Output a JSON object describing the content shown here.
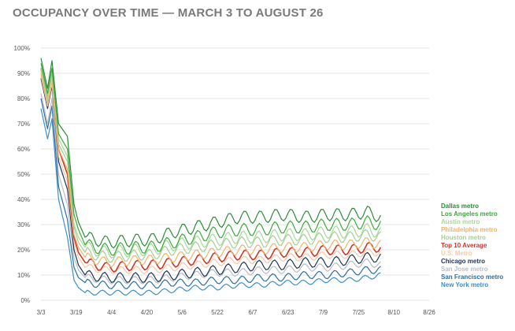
{
  "chart_data": {
    "type": "line",
    "title": "OCCUPANCY OVER TIME — MARCH 3 TO AUGUST 26",
    "xlabel": "",
    "ylabel": "",
    "x_ticks": [
      "3/3",
      "3/19",
      "4/4",
      "4/20",
      "5/6",
      "5/22",
      "6/7",
      "6/23",
      "7/9",
      "7/25",
      "8/10",
      "8/26"
    ],
    "y_ticks": [
      "0%",
      "10%",
      "20%",
      "30%",
      "40%",
      "50%",
      "60%",
      "70%",
      "80%",
      "90%",
      "100%"
    ],
    "ylim": [
      0,
      100
    ],
    "grid": true,
    "legend_placement": "right",
    "series": [
      {
        "name": "Dallas metro",
        "color": "#2e8a3a",
        "anchors": [
          [
            0,
            96
          ],
          [
            3,
            84
          ],
          [
            5,
            95
          ],
          [
            8,
            70
          ],
          [
            12,
            65
          ],
          [
            15,
            38
          ],
          [
            17,
            31
          ],
          [
            20,
            25
          ],
          [
            30,
            23
          ],
          [
            45,
            24
          ],
          [
            50,
            24
          ],
          [
            60,
            27
          ],
          [
            70,
            29
          ],
          [
            80,
            31
          ],
          [
            90,
            33
          ],
          [
            100,
            33
          ],
          [
            110,
            34
          ],
          [
            120,
            33
          ],
          [
            130,
            34
          ],
          [
            140,
            34
          ],
          [
            148,
            35
          ],
          [
            154,
            33
          ]
        ],
        "amp": 2.5,
        "period": 7,
        "phase": 0.3
      },
      {
        "name": "Los Angeles metro",
        "color": "#3aaa3a",
        "anchors": [
          [
            0,
            94
          ],
          [
            3,
            82
          ],
          [
            5,
            92
          ],
          [
            8,
            66
          ],
          [
            12,
            60
          ],
          [
            15,
            34
          ],
          [
            17,
            28
          ],
          [
            20,
            22
          ],
          [
            30,
            20
          ],
          [
            45,
            21
          ],
          [
            50,
            21
          ],
          [
            60,
            23
          ],
          [
            70,
            25
          ],
          [
            80,
            27
          ],
          [
            90,
            28
          ],
          [
            100,
            28
          ],
          [
            110,
            29
          ],
          [
            120,
            29
          ],
          [
            130,
            30
          ],
          [
            140,
            30
          ],
          [
            148,
            31
          ],
          [
            154,
            30
          ]
        ],
        "amp": 2.5,
        "period": 7,
        "phase": 0.6
      },
      {
        "name": "Austin metro",
        "color": "#a7d89a",
        "anchors": [
          [
            0,
            92
          ],
          [
            3,
            80
          ],
          [
            5,
            90
          ],
          [
            8,
            64
          ],
          [
            12,
            57
          ],
          [
            15,
            30
          ],
          [
            17,
            25
          ],
          [
            20,
            21
          ],
          [
            30,
            19
          ],
          [
            45,
            20
          ],
          [
            50,
            20
          ],
          [
            60,
            22
          ],
          [
            70,
            23
          ],
          [
            80,
            24
          ],
          [
            90,
            25
          ],
          [
            100,
            25
          ],
          [
            110,
            26
          ],
          [
            120,
            26
          ],
          [
            130,
            27
          ],
          [
            140,
            27
          ],
          [
            148,
            28
          ],
          [
            154,
            27
          ]
        ],
        "amp": 2.5,
        "period": 7,
        "phase": 0.9
      },
      {
        "name": "Philadelphia metro",
        "color": "#f2b36b",
        "anchors": [
          [
            0,
            90
          ],
          [
            3,
            78
          ],
          [
            5,
            88
          ],
          [
            8,
            60
          ],
          [
            12,
            52
          ],
          [
            15,
            26
          ],
          [
            17,
            21
          ],
          [
            20,
            17
          ],
          [
            30,
            15
          ],
          [
            45,
            16
          ],
          [
            50,
            16
          ],
          [
            60,
            17
          ],
          [
            70,
            18
          ],
          [
            80,
            19
          ],
          [
            90,
            20
          ],
          [
            100,
            20
          ],
          [
            110,
            21
          ],
          [
            120,
            21
          ],
          [
            130,
            22
          ],
          [
            140,
            22
          ],
          [
            148,
            23
          ],
          [
            154,
            22
          ]
        ],
        "amp": 2,
        "period": 7,
        "phase": 1.2
      },
      {
        "name": "Houston metro",
        "color": "#a5cf94",
        "anchors": [
          [
            0,
            91
          ],
          [
            3,
            79
          ],
          [
            5,
            89
          ],
          [
            8,
            62
          ],
          [
            12,
            55
          ],
          [
            15,
            29
          ],
          [
            17,
            23
          ],
          [
            20,
            19
          ],
          [
            30,
            17
          ],
          [
            45,
            18
          ],
          [
            50,
            18
          ],
          [
            60,
            20
          ],
          [
            70,
            21
          ],
          [
            80,
            22
          ],
          [
            90,
            23
          ],
          [
            100,
            23
          ],
          [
            110,
            24
          ],
          [
            120,
            24
          ],
          [
            130,
            25
          ],
          [
            140,
            25
          ],
          [
            148,
            26
          ],
          [
            154,
            25
          ]
        ],
        "amp": 2.2,
        "period": 7,
        "phase": 1.5
      },
      {
        "name": "Top 10 Average",
        "color": "#c9382a",
        "anchors": [
          [
            0,
            92
          ],
          [
            3,
            80
          ],
          [
            5,
            89
          ],
          [
            8,
            60
          ],
          [
            12,
            50
          ],
          [
            15,
            25
          ],
          [
            17,
            19
          ],
          [
            20,
            15
          ],
          [
            30,
            13
          ],
          [
            45,
            14
          ],
          [
            50,
            14
          ],
          [
            60,
            15
          ],
          [
            70,
            16
          ],
          [
            80,
            17
          ],
          [
            90,
            18
          ],
          [
            100,
            18
          ],
          [
            110,
            19
          ],
          [
            120,
            19
          ],
          [
            130,
            20
          ],
          [
            140,
            20
          ],
          [
            148,
            21
          ],
          [
            154,
            21
          ]
        ],
        "amp": 2,
        "period": 7,
        "phase": 0
      },
      {
        "name": "U.S. Metro",
        "color": "#f5c9a8",
        "anchors": [
          [
            0,
            89
          ],
          [
            3,
            77
          ],
          [
            5,
            86
          ],
          [
            8,
            57
          ],
          [
            12,
            47
          ],
          [
            15,
            23
          ],
          [
            17,
            17
          ],
          [
            20,
            13
          ],
          [
            30,
            12
          ],
          [
            45,
            12
          ],
          [
            50,
            12
          ],
          [
            60,
            13
          ],
          [
            70,
            14
          ],
          [
            80,
            15
          ],
          [
            90,
            16
          ],
          [
            100,
            16
          ],
          [
            110,
            17
          ],
          [
            120,
            17
          ],
          [
            130,
            18
          ],
          [
            140,
            18
          ],
          [
            148,
            19
          ],
          [
            154,
            19
          ]
        ],
        "amp": 1.5,
        "period": 7,
        "phase": 0.4
      },
      {
        "name": "Chicago metro",
        "color": "#1d3557",
        "anchors": [
          [
            0,
            88
          ],
          [
            3,
            76
          ],
          [
            5,
            85
          ],
          [
            8,
            55
          ],
          [
            12,
            44
          ],
          [
            15,
            20
          ],
          [
            17,
            14
          ],
          [
            20,
            10
          ],
          [
            30,
            9
          ],
          [
            45,
            9
          ],
          [
            50,
            9
          ],
          [
            60,
            10
          ],
          [
            70,
            11
          ],
          [
            80,
            12
          ],
          [
            90,
            13
          ],
          [
            100,
            14
          ],
          [
            110,
            14
          ],
          [
            120,
            15
          ],
          [
            130,
            15
          ],
          [
            140,
            16
          ],
          [
            148,
            17
          ],
          [
            154,
            17
          ]
        ],
        "amp": 2,
        "period": 7,
        "phase": 0.8
      },
      {
        "name": "San Jose metro",
        "color": "#b9bdc4",
        "anchors": [
          [
            0,
            82
          ],
          [
            3,
            70
          ],
          [
            5,
            80
          ],
          [
            8,
            50
          ],
          [
            12,
            38
          ],
          [
            15,
            17
          ],
          [
            17,
            12
          ],
          [
            20,
            9
          ],
          [
            30,
            8
          ],
          [
            45,
            8
          ],
          [
            50,
            8
          ],
          [
            60,
            9
          ],
          [
            70,
            10
          ],
          [
            80,
            11
          ],
          [
            90,
            11
          ],
          [
            100,
            12
          ],
          [
            110,
            12
          ],
          [
            120,
            13
          ],
          [
            130,
            13
          ],
          [
            140,
            14
          ],
          [
            148,
            15
          ],
          [
            154,
            14
          ]
        ],
        "amp": 1.5,
        "period": 7,
        "phase": 1.1
      },
      {
        "name": "San Francisco metro",
        "color": "#2b6f9e",
        "anchors": [
          [
            0,
            80
          ],
          [
            3,
            68
          ],
          [
            5,
            77
          ],
          [
            8,
            45
          ],
          [
            12,
            32
          ],
          [
            15,
            13
          ],
          [
            17,
            9
          ],
          [
            20,
            7
          ],
          [
            30,
            6
          ],
          [
            45,
            6
          ],
          [
            50,
            6
          ],
          [
            60,
            7
          ],
          [
            70,
            7
          ],
          [
            80,
            8
          ],
          [
            90,
            8
          ],
          [
            100,
            9
          ],
          [
            110,
            9
          ],
          [
            120,
            10
          ],
          [
            130,
            10
          ],
          [
            140,
            11
          ],
          [
            148,
            12
          ],
          [
            154,
            12
          ]
        ],
        "amp": 1.5,
        "period": 7,
        "phase": 1.4
      },
      {
        "name": "New York metro",
        "color": "#3e8fc4",
        "anchors": [
          [
            0,
            76
          ],
          [
            3,
            64
          ],
          [
            5,
            72
          ],
          [
            8,
            40
          ],
          [
            12,
            25
          ],
          [
            15,
            8
          ],
          [
            17,
            5
          ],
          [
            20,
            3
          ],
          [
            30,
            3
          ],
          [
            45,
            3
          ],
          [
            50,
            3
          ],
          [
            60,
            4
          ],
          [
            70,
            5
          ],
          [
            80,
            5
          ],
          [
            90,
            6
          ],
          [
            100,
            6
          ],
          [
            110,
            7
          ],
          [
            120,
            7
          ],
          [
            130,
            8
          ],
          [
            140,
            8
          ],
          [
            148,
            9
          ],
          [
            154,
            10
          ]
        ],
        "amp": 1,
        "period": 7,
        "phase": 1.7
      }
    ]
  }
}
